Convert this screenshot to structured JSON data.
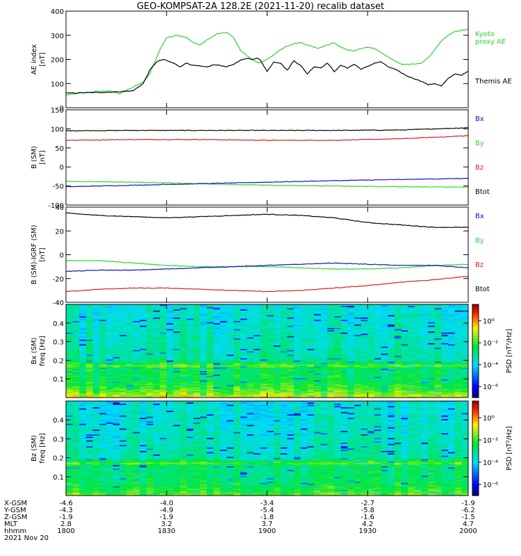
{
  "title": "GEO-KOMPSAT-2A 128.2E (2021-11-20) recalib dataset",
  "colors": {
    "black": "#000000",
    "green": "#2ad62a",
    "red": "#e01a1a",
    "blue": "#1010c8"
  },
  "chart_data": [
    {
      "type": "line",
      "panel": "ae",
      "ylabel": [
        "AE index",
        "[nT]"
      ],
      "ylim": [
        0,
        400
      ],
      "yticks": [
        "0",
        "100",
        "200",
        "300",
        "400"
      ],
      "yticks_v": [
        0,
        100,
        200,
        300,
        400
      ],
      "legend": [
        {
          "label": "Kyoto",
          "color": "green"
        },
        {
          "label": "proxy AE",
          "color": "green"
        },
        {
          "label": "Themis AE",
          "color": "black"
        }
      ],
      "series": [
        {
          "name": "Kyoto proxy AE",
          "color": "green",
          "x": [
            0,
            5,
            10,
            13,
            16,
            20,
            23,
            25,
            28,
            30,
            33,
            36,
            38,
            40,
            42,
            45,
            48,
            50,
            52,
            54,
            56,
            58,
            60,
            62,
            64,
            66,
            68,
            70,
            72,
            75,
            78,
            80,
            82,
            84,
            86,
            88,
            90,
            92,
            95,
            98,
            100,
            102,
            104,
            106,
            108,
            110,
            112,
            114,
            116,
            118,
            120
          ],
          "y": [
            52,
            62,
            68,
            70,
            58,
            85,
            105,
            140,
            240,
            290,
            300,
            290,
            270,
            260,
            280,
            305,
            312,
            290,
            240,
            215,
            195,
            185,
            200,
            220,
            240,
            255,
            265,
            270,
            260,
            245,
            260,
            270,
            250,
            240,
            235,
            245,
            250,
            245,
            220,
            195,
            180,
            180,
            180,
            185,
            205,
            240,
            275,
            300,
            315,
            320,
            325
          ]
        },
        {
          "name": "Themis AE",
          "color": "black",
          "x": [
            0,
            5,
            10,
            15,
            20,
            23,
            25,
            27,
            29,
            30,
            32,
            34,
            36,
            38,
            40,
            42,
            44,
            46,
            48,
            50,
            52,
            54,
            56,
            57,
            58,
            60,
            62,
            64,
            66,
            68,
            70,
            72,
            74,
            76,
            78,
            80,
            82,
            84,
            86,
            88,
            90,
            92,
            94,
            96,
            98,
            100,
            102,
            104,
            106,
            108,
            110,
            112,
            114,
            116,
            118,
            120
          ],
          "y": [
            60,
            62,
            63,
            66,
            70,
            100,
            155,
            190,
            200,
            195,
            185,
            170,
            185,
            175,
            172,
            168,
            178,
            175,
            170,
            180,
            195,
            205,
            200,
            205,
            198,
            150,
            190,
            185,
            155,
            195,
            175,
            140,
            170,
            165,
            185,
            150,
            175,
            165,
            180,
            160,
            170,
            185,
            190,
            170,
            160,
            145,
            130,
            120,
            110,
            95,
            100,
            90,
            120,
            140,
            135,
            150
          ]
        }
      ]
    },
    {
      "type": "line",
      "panel": "b_sm",
      "ylabel": [
        "B (SM)",
        "[nT]"
      ],
      "ylim": [
        -100,
        150
      ],
      "yticks": [
        "-100",
        "-50",
        "0",
        "50",
        "100",
        "150"
      ],
      "yticks_v": [
        -100,
        -50,
        0,
        50,
        100,
        150
      ],
      "legend": [
        {
          "label": "Bx",
          "color": "blue"
        },
        {
          "label": "By",
          "color": "green"
        },
        {
          "label": "Bz",
          "color": "red"
        },
        {
          "label": "Btot",
          "color": "black"
        }
      ],
      "series": [
        {
          "name": "Btot",
          "color": "black",
          "x": [
            0,
            20,
            40,
            60,
            80,
            100,
            120
          ],
          "y": [
            95,
            96,
            96,
            96,
            96,
            97,
            103
          ]
        },
        {
          "name": "Bz",
          "color": "red",
          "x": [
            0,
            20,
            40,
            60,
            80,
            100,
            120
          ],
          "y": [
            70,
            72,
            72,
            70,
            70,
            74,
            82
          ]
        },
        {
          "name": "By",
          "color": "green",
          "x": [
            0,
            20,
            40,
            60,
            80,
            100,
            120
          ],
          "y": [
            -38,
            -40,
            -44,
            -48,
            -50,
            -52,
            -53
          ]
        },
        {
          "name": "Bx",
          "color": "blue",
          "x": [
            0,
            20,
            40,
            60,
            80,
            100,
            120
          ],
          "y": [
            -52,
            -48,
            -44,
            -40,
            -36,
            -33,
            -30
          ]
        }
      ]
    },
    {
      "type": "line",
      "panel": "db",
      "ylabel": [
        "B (SM)-IGRF (SM)",
        "[nT]"
      ],
      "ylim": [
        -40,
        40
      ],
      "yticks": [
        "-40",
        "-20",
        "0",
        "20",
        "40"
      ],
      "yticks_v": [
        -40,
        -20,
        0,
        20,
        40
      ],
      "legend": [
        {
          "label": "Bx",
          "color": "blue"
        },
        {
          "label": "By",
          "color": "green"
        },
        {
          "label": "Bz",
          "color": "red"
        },
        {
          "label": "Btot",
          "color": "black"
        }
      ],
      "series": [
        {
          "name": "Btot",
          "color": "black",
          "x": [
            0,
            10,
            20,
            30,
            40,
            50,
            60,
            70,
            80,
            85,
            90,
            100,
            110,
            120
          ],
          "y": [
            35,
            33,
            32,
            31,
            32,
            33,
            34,
            33,
            31,
            29,
            27,
            25,
            23,
            23
          ]
        },
        {
          "name": "Bz",
          "color": "red",
          "x": [
            0,
            10,
            20,
            30,
            40,
            50,
            60,
            70,
            80,
            90,
            100,
            110,
            120
          ],
          "y": [
            -31,
            -29,
            -28,
            -28,
            -29,
            -30,
            -31,
            -30,
            -28,
            -26,
            -23,
            -21,
            -18
          ]
        },
        {
          "name": "By",
          "color": "green",
          "x": [
            0,
            10,
            20,
            30,
            40,
            50,
            60,
            70,
            80,
            90,
            100,
            110,
            120
          ],
          "y": [
            -5,
            -5,
            -7,
            -9,
            -10,
            -10,
            -10,
            -11,
            -12,
            -12,
            -11,
            -9,
            -8
          ]
        },
        {
          "name": "Bx",
          "color": "blue",
          "x": [
            0,
            10,
            20,
            30,
            40,
            50,
            60,
            70,
            80,
            90,
            100,
            110,
            120
          ],
          "y": [
            -14,
            -13,
            -13,
            -12,
            -11,
            -10,
            -9,
            -8,
            -7,
            -8,
            -9,
            -9,
            -11
          ]
        }
      ]
    },
    {
      "type": "heatmap",
      "panel": "bx_psd",
      "ylabel": [
        "Bx (SM)",
        "freq [Hz]"
      ],
      "ylim": [
        0,
        0.5
      ],
      "yticks": [
        "0.1",
        "0.2",
        "0.3",
        "0.4"
      ],
      "yticks_v": [
        0.1,
        0.2,
        0.3,
        0.4
      ],
      "colorbar_label": "PSD [nT²/Hz]",
      "colorbar_ticks": [
        "10⁰",
        "10⁻²",
        "10⁻⁴",
        "10⁻⁶"
      ],
      "colorbar_ticks_v": [
        0,
        -2,
        -4,
        -6
      ],
      "colorbar_range": [
        -7,
        1.5
      ],
      "profile": {
        "f": [
          0,
          0.02,
          0.05,
          0.1,
          0.16,
          0.17,
          0.2,
          0.3,
          0.5
        ],
        "logpsd": [
          -0.6,
          -1.4,
          -2.0,
          -2.6,
          -2.6,
          -1.6,
          -3.2,
          -3.4,
          -3.7
        ]
      }
    },
    {
      "type": "heatmap",
      "panel": "bz_psd",
      "ylabel": [
        "Bz (SM)",
        "freq [Hz]"
      ],
      "ylim": [
        0,
        0.5
      ],
      "yticks": [
        "0.1",
        "0.2",
        "0.3",
        "0.4"
      ],
      "yticks_v": [
        0.1,
        0.2,
        0.3,
        0.4
      ],
      "colorbar_label": "PSD [nT²/Hz]",
      "colorbar_ticks": [
        "10⁰",
        "10⁻²",
        "10⁻⁴",
        "10⁻⁶"
      ],
      "colorbar_ticks_v": [
        0,
        -2,
        -4,
        -6
      ],
      "colorbar_range": [
        -7,
        1.5
      ],
      "profile": {
        "f": [
          0,
          0.02,
          0.05,
          0.1,
          0.16,
          0.17,
          0.2,
          0.3,
          0.5
        ],
        "logpsd": [
          -1.6,
          -2.1,
          -2.5,
          -2.8,
          -2.8,
          -1.8,
          -3.3,
          -3.5,
          -3.8
        ]
      }
    }
  ],
  "xaxis": {
    "range": [
      0,
      120
    ],
    "ticks_v": [
      0,
      30,
      60,
      90,
      120
    ],
    "rows": [
      {
        "label": "X-GSM",
        "values": [
          "-4.6",
          "-4.0",
          "-3.4",
          "-2.7",
          "-1.9"
        ]
      },
      {
        "label": "Y-GSM",
        "values": [
          "-4.3",
          "-4.9",
          "-5.4",
          "-5.8",
          "-6.2"
        ]
      },
      {
        "label": "Z-GSM",
        "values": [
          "-1.9",
          "-1.9",
          "-1.8",
          "-1.6",
          "-1.5"
        ]
      },
      {
        "label": "MLT",
        "values": [
          "2.8",
          "3.2",
          "3.7",
          "4.2",
          "4.7"
        ]
      },
      {
        "label": "hhmm",
        "values": [
          "1800",
          "1830",
          "1900",
          "1930",
          "2000"
        ]
      }
    ],
    "date": "2021 Nov 20"
  }
}
